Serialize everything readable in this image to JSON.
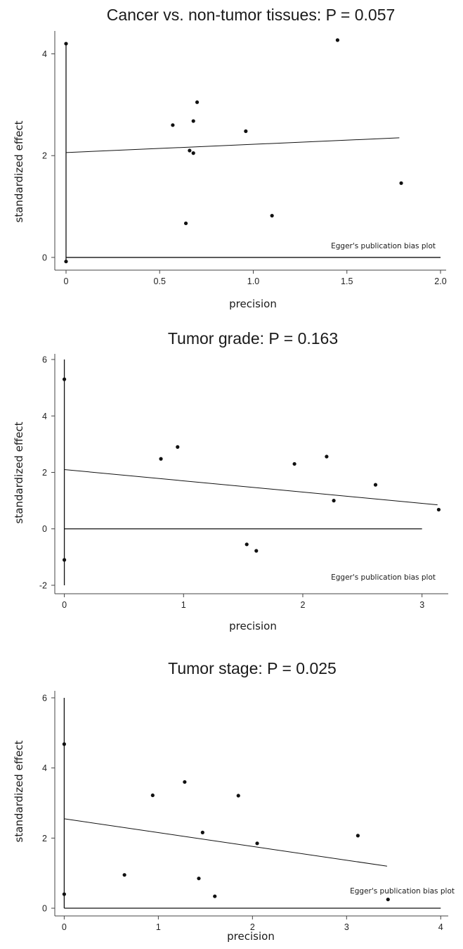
{
  "chart_data": [
    {
      "type": "scatter",
      "title": "Cancer vs. non-tumor tissues: P = 0.057",
      "xlabel": "precision",
      "ylabel": "standardized effect",
      "annotation": "Egger's publication bias plot",
      "xlim": [
        -0.06,
        2.03
      ],
      "ylim": [
        -0.25,
        4.45
      ],
      "xticks": [
        0,
        0.5,
        1.0,
        1.5,
        2.0
      ],
      "xtick_labels": [
        "0",
        "0.5",
        "1.0",
        "1.5",
        "2.0"
      ],
      "yticks": [
        0,
        2,
        4
      ],
      "ytick_labels": [
        "0",
        "2",
        "4"
      ],
      "refline_y": 0,
      "vline_x": 0,
      "vline_y_range": [
        -0.1,
        4.2
      ],
      "regression": {
        "x": [
          0,
          1.78
        ],
        "y": [
          2.06,
          2.35
        ]
      },
      "points": [
        {
          "x": 0.0,
          "y": 4.2
        },
        {
          "x": 0.0,
          "y": -0.08
        },
        {
          "x": 0.57,
          "y": 2.6
        },
        {
          "x": 0.66,
          "y": 2.1
        },
        {
          "x": 0.68,
          "y": 2.05
        },
        {
          "x": 0.68,
          "y": 2.68
        },
        {
          "x": 0.7,
          "y": 3.05
        },
        {
          "x": 0.64,
          "y": 0.67
        },
        {
          "x": 0.96,
          "y": 2.48
        },
        {
          "x": 1.1,
          "y": 0.82
        },
        {
          "x": 1.45,
          "y": 4.27
        },
        {
          "x": 1.79,
          "y": 1.46
        }
      ]
    },
    {
      "type": "scatter",
      "title": "Tumor grade: P = 0.163",
      "xlabel": "precision",
      "ylabel": "standardized effect",
      "annotation": "Egger's publication bias plot",
      "xlim": [
        -0.08,
        3.22
      ],
      "ylim": [
        -2.3,
        6.2
      ],
      "xticks": [
        0,
        1,
        2,
        3
      ],
      "xtick_labels": [
        "0",
        "1",
        "2",
        "3"
      ],
      "yticks": [
        -2,
        0,
        2,
        4,
        6
      ],
      "ytick_labels": [
        "-2",
        "0",
        "2",
        "4",
        "6"
      ],
      "refline_y": 0,
      "vline_x": 0,
      "vline_y_range": [
        -2,
        6
      ],
      "regression": {
        "x": [
          0,
          3.13
        ],
        "y": [
          2.1,
          0.85
        ]
      },
      "points": [
        {
          "x": 0.0,
          "y": 5.3
        },
        {
          "x": 0.0,
          "y": -1.1
        },
        {
          "x": 0.81,
          "y": 2.48
        },
        {
          "x": 0.95,
          "y": 2.9
        },
        {
          "x": 1.53,
          "y": -0.55
        },
        {
          "x": 1.61,
          "y": -0.78
        },
        {
          "x": 1.93,
          "y": 2.3
        },
        {
          "x": 2.2,
          "y": 2.56
        },
        {
          "x": 2.26,
          "y": 1.0
        },
        {
          "x": 2.61,
          "y": 1.56
        },
        {
          "x": 3.14,
          "y": 0.68
        }
      ]
    },
    {
      "type": "scatter",
      "title": "Tumor stage: P = 0.025",
      "xlabel": "precision",
      "ylabel": "standardized effect",
      "annotation": "Egger's publication bias plot",
      "xlim": [
        -0.1,
        4.08
      ],
      "ylim": [
        -0.22,
        6.2
      ],
      "xticks": [
        0,
        1,
        2,
        3,
        4
      ],
      "xtick_labels": [
        "0",
        "1",
        "2",
        "3",
        "4"
      ],
      "yticks": [
        0,
        2,
        4,
        6
      ],
      "ytick_labels": [
        "0",
        "2",
        "4",
        "6"
      ],
      "refline_y": 0,
      "vline_x": 0,
      "vline_y_range": [
        0,
        6
      ],
      "regression": {
        "x": [
          0,
          3.43
        ],
        "y": [
          2.55,
          1.2
        ]
      },
      "points": [
        {
          "x": 0.0,
          "y": 4.68
        },
        {
          "x": 0.0,
          "y": 0.4
        },
        {
          "x": 0.64,
          "y": 0.95
        },
        {
          "x": 0.94,
          "y": 3.22
        },
        {
          "x": 1.28,
          "y": 3.6
        },
        {
          "x": 1.43,
          "y": 0.85
        },
        {
          "x": 1.47,
          "y": 2.16
        },
        {
          "x": 1.6,
          "y": 0.34
        },
        {
          "x": 1.85,
          "y": 3.21
        },
        {
          "x": 2.05,
          "y": 1.85
        },
        {
          "x": 3.12,
          "y": 2.07
        },
        {
          "x": 3.44,
          "y": 0.25
        }
      ]
    }
  ]
}
